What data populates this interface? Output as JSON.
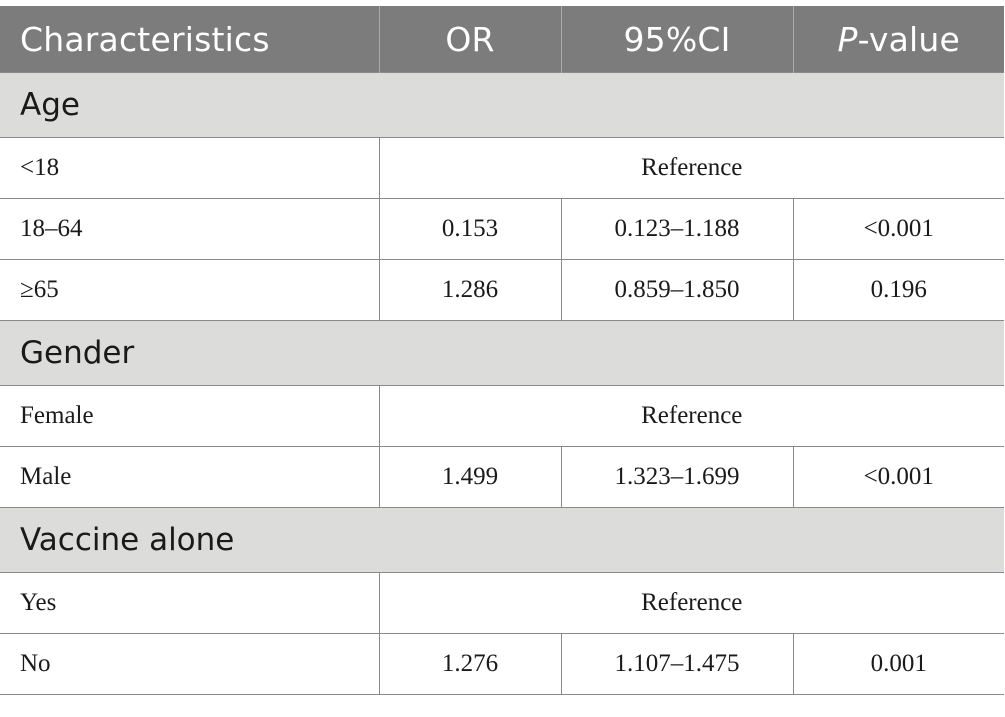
{
  "table": {
    "headers": {
      "characteristics": "Characteristics",
      "or": "OR",
      "ci": "95%CI",
      "p_italic": "P",
      "p_rest": "-value"
    },
    "groups": [
      {
        "title": "Age",
        "rows": [
          {
            "label": "<18",
            "reference": "Reference"
          },
          {
            "label": "18–64",
            "or": "0.153",
            "ci": "0.123–1.188",
            "p": "<0.001"
          },
          {
            "label": "≥65",
            "or": "1.286",
            "ci": "0.859–1.850",
            "p": "0.196"
          }
        ]
      },
      {
        "title": "Gender",
        "rows": [
          {
            "label": "Female",
            "reference": "Reference"
          },
          {
            "label": "Male",
            "or": "1.499",
            "ci": "1.323–1.699",
            "p": "<0.001"
          }
        ]
      },
      {
        "title": "Vaccine alone",
        "rows": [
          {
            "label": "Yes",
            "reference": "Reference"
          },
          {
            "label": "No",
            "or": "1.276",
            "ci": "1.107–1.475",
            "p": "0.001"
          }
        ]
      }
    ]
  }
}
